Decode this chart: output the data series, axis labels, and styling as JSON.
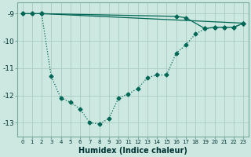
{
  "background_color": "#cce8e0",
  "grid_color": "#aaccc0",
  "line_color": "#006655",
  "xlabel": "Humidex (Indice chaleur)",
  "xlim": [
    -0.5,
    23.5
  ],
  "ylim": [
    -13.5,
    -8.6
  ],
  "yticks": [
    -13,
    -12,
    -11,
    -10,
    -9
  ],
  "xticks": [
    0,
    1,
    2,
    3,
    4,
    5,
    6,
    7,
    8,
    9,
    10,
    11,
    12,
    13,
    14,
    15,
    16,
    17,
    18,
    19,
    20,
    21,
    22,
    23
  ],
  "xtick_labels": [
    "0",
    "1",
    "2",
    "3",
    "4",
    "5",
    "6",
    "7",
    "8",
    "9",
    "1011",
    "12",
    "13",
    "14",
    "15",
    "16",
    "17",
    "18",
    "19",
    "20",
    "21",
    "2223",
    ""
  ],
  "line1_x": [
    0,
    1,
    2,
    23
  ],
  "line1_y": [
    -9.0,
    -9.0,
    -9.0,
    -9.35
  ],
  "line2_x": [
    0,
    1,
    2,
    3,
    4,
    5,
    6,
    7,
    8,
    9,
    10,
    11,
    12,
    13,
    14,
    15,
    16,
    17,
    18,
    19,
    20,
    21,
    22,
    23
  ],
  "line2_y": [
    -9.0,
    -9.0,
    -9.0,
    -11.3,
    -12.1,
    -12.25,
    -12.5,
    -13.0,
    -13.05,
    -12.85,
    -12.1,
    -11.95,
    -11.75,
    -11.35,
    -11.25,
    -11.25,
    -10.45,
    -10.15,
    -9.75,
    -9.55,
    -9.5,
    -9.5,
    -9.5,
    -9.35
  ],
  "line3_x": [
    2,
    16,
    17,
    19,
    20,
    21,
    22,
    23
  ],
  "line3_y": [
    -9.0,
    -9.1,
    -9.15,
    -9.55,
    -9.5,
    -9.5,
    -9.5,
    -9.35
  ]
}
